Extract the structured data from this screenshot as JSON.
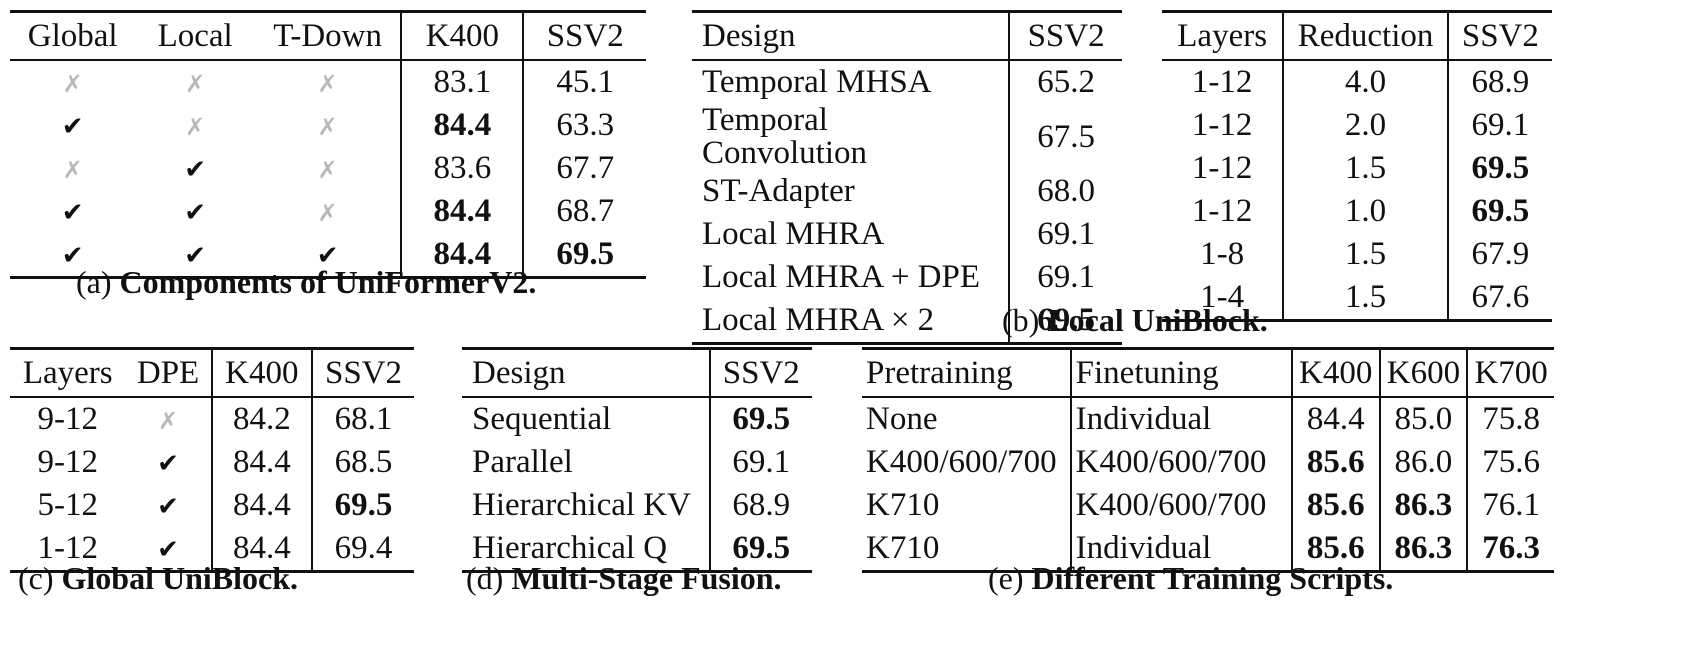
{
  "marks": {
    "yes": "✔",
    "no": "✗"
  },
  "table_a": {
    "caption_label": "(a)",
    "caption_title": "Components of UniFormerV2.",
    "headers": [
      "Global",
      "Local",
      "T-Down",
      "K400",
      "SSV2"
    ],
    "rows": [
      {
        "global": "no",
        "local": "no",
        "tdown": "no",
        "k400": "83.1",
        "ssv2": "45.1"
      },
      {
        "global": "yes",
        "local": "no",
        "tdown": "no",
        "k400": "84.4",
        "ssv2": "63.3"
      },
      {
        "global": "no",
        "local": "yes",
        "tdown": "no",
        "k400": "83.6",
        "ssv2": "67.7"
      },
      {
        "global": "yes",
        "local": "yes",
        "tdown": "no",
        "k400": "84.4",
        "ssv2": "68.7"
      },
      {
        "global": "yes",
        "local": "yes",
        "tdown": "yes",
        "k400": "84.4",
        "ssv2": "69.5"
      }
    ]
  },
  "table_b": {
    "caption_label": "(b)",
    "caption_title": "Local UniBlock.",
    "headers": [
      "Design",
      "SSV2"
    ],
    "rows": [
      {
        "design": "Temporal MHSA",
        "ssv2": "65.2"
      },
      {
        "design": "Temporal Convolution",
        "ssv2": "67.5"
      },
      {
        "design": "ST-Adapter",
        "ssv2": "68.0"
      },
      {
        "design": "Local MHRA",
        "ssv2": "69.1"
      },
      {
        "design": "Local MHRA + DPE",
        "ssv2": "69.1"
      },
      {
        "design": "Local MHRA × 2",
        "ssv2": "69.5"
      }
    ]
  },
  "table_b2": {
    "headers": [
      "Layers",
      "Reduction",
      "SSV2"
    ],
    "rows": [
      {
        "layers": "1-12",
        "reduction": "4.0",
        "ssv2": "68.9"
      },
      {
        "layers": "1-12",
        "reduction": "2.0",
        "ssv2": "69.1"
      },
      {
        "layers": "1-12",
        "reduction": "1.5",
        "ssv2": "69.5"
      },
      {
        "layers": "1-12",
        "reduction": "1.0",
        "ssv2": "69.5"
      },
      {
        "layers": "1-8",
        "reduction": "1.5",
        "ssv2": "67.9"
      },
      {
        "layers": "1-4",
        "reduction": "1.5",
        "ssv2": "67.6"
      }
    ]
  },
  "table_c": {
    "caption_label": "(c)",
    "caption_title": "Global UniBlock.",
    "headers": [
      "Layers",
      "DPE",
      "K400",
      "SSV2"
    ],
    "rows": [
      {
        "layers": "9-12",
        "dpe": "no",
        "k400": "84.2",
        "ssv2": "68.1"
      },
      {
        "layers": "9-12",
        "dpe": "yes",
        "k400": "84.4",
        "ssv2": "68.5"
      },
      {
        "layers": "5-12",
        "dpe": "yes",
        "k400": "84.4",
        "ssv2": "69.5"
      },
      {
        "layers": "1-12",
        "dpe": "yes",
        "k400": "84.4",
        "ssv2": "69.4"
      }
    ]
  },
  "table_d": {
    "caption_label": "(d)",
    "caption_title": "Multi-Stage Fusion.",
    "headers": [
      "Design",
      "SSV2"
    ],
    "rows": [
      {
        "design": "Sequential",
        "ssv2": "69.5"
      },
      {
        "design": "Parallel",
        "ssv2": "69.1"
      },
      {
        "design": "Hierarchical KV",
        "ssv2": "68.9"
      },
      {
        "design": "Hierarchical Q",
        "ssv2": "69.5"
      }
    ]
  },
  "table_e": {
    "caption_label": "(e)",
    "caption_title": "Different Training Scripts.",
    "headers": [
      "Pretraining",
      "Finetuning",
      "K400",
      "K600",
      "K700"
    ],
    "rows": [
      {
        "pretraining": "None",
        "finetuning": "Individual",
        "k400": "84.4",
        "k600": "85.0",
        "k700": "75.8"
      },
      {
        "pretraining": "K400/600/700",
        "finetuning": "K400/600/700",
        "k400": "85.6",
        "k600": "86.0",
        "k700": "75.6"
      },
      {
        "pretraining": "K710",
        "finetuning": "K400/600/700",
        "k400": "85.6",
        "k600": "86.3",
        "k700": "76.1"
      },
      {
        "pretraining": "K710",
        "finetuning": "Individual",
        "k400": "85.6",
        "k600": "86.3",
        "k700": "76.3"
      }
    ]
  }
}
